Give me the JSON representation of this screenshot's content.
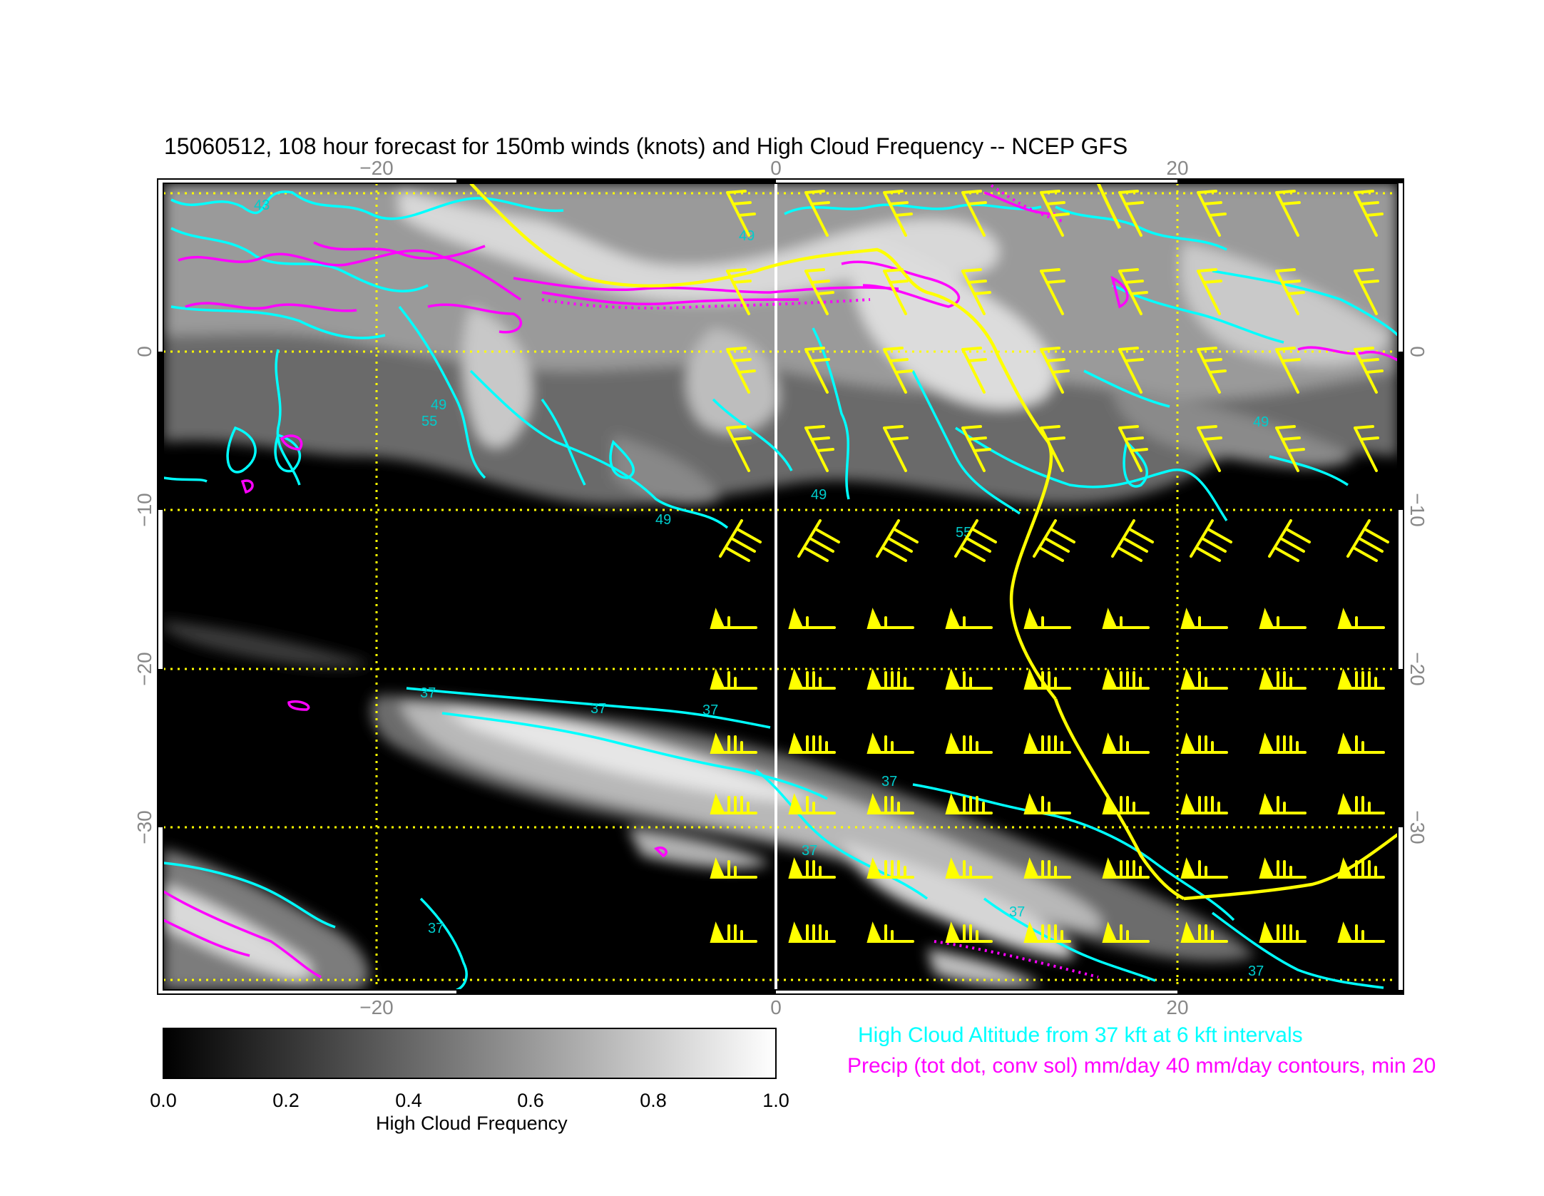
{
  "title": "15060512, 108 hour forecast for 150mb winds (knots) and High Cloud Frequency -- NCEP GFS",
  "map": {
    "x_ticks": [
      "−20",
      "0",
      "20"
    ],
    "y_ticks": [
      "0",
      "−10",
      "−20",
      "−30"
    ],
    "background": "#000000",
    "gridline_color": "#ffff00",
    "contour_labels": [
      "43",
      "49",
      "55",
      "37"
    ]
  },
  "legend": {
    "high_cloud": "High Cloud Altitude from 37 kft at 6 kft intervals",
    "precip": "Precip (tot dot, conv sol) mm/day 40 mm/day contours, min 20",
    "high_cloud_color": "#00ffff",
    "precip_color": "#ff00ff",
    "wind_color": "#ffff00"
  },
  "colorbar": {
    "label": "High Cloud Frequency",
    "ticks": [
      "0.0",
      "0.2",
      "0.4",
      "0.6",
      "0.8",
      "1.0"
    ],
    "range": [
      0.0,
      1.0
    ]
  }
}
